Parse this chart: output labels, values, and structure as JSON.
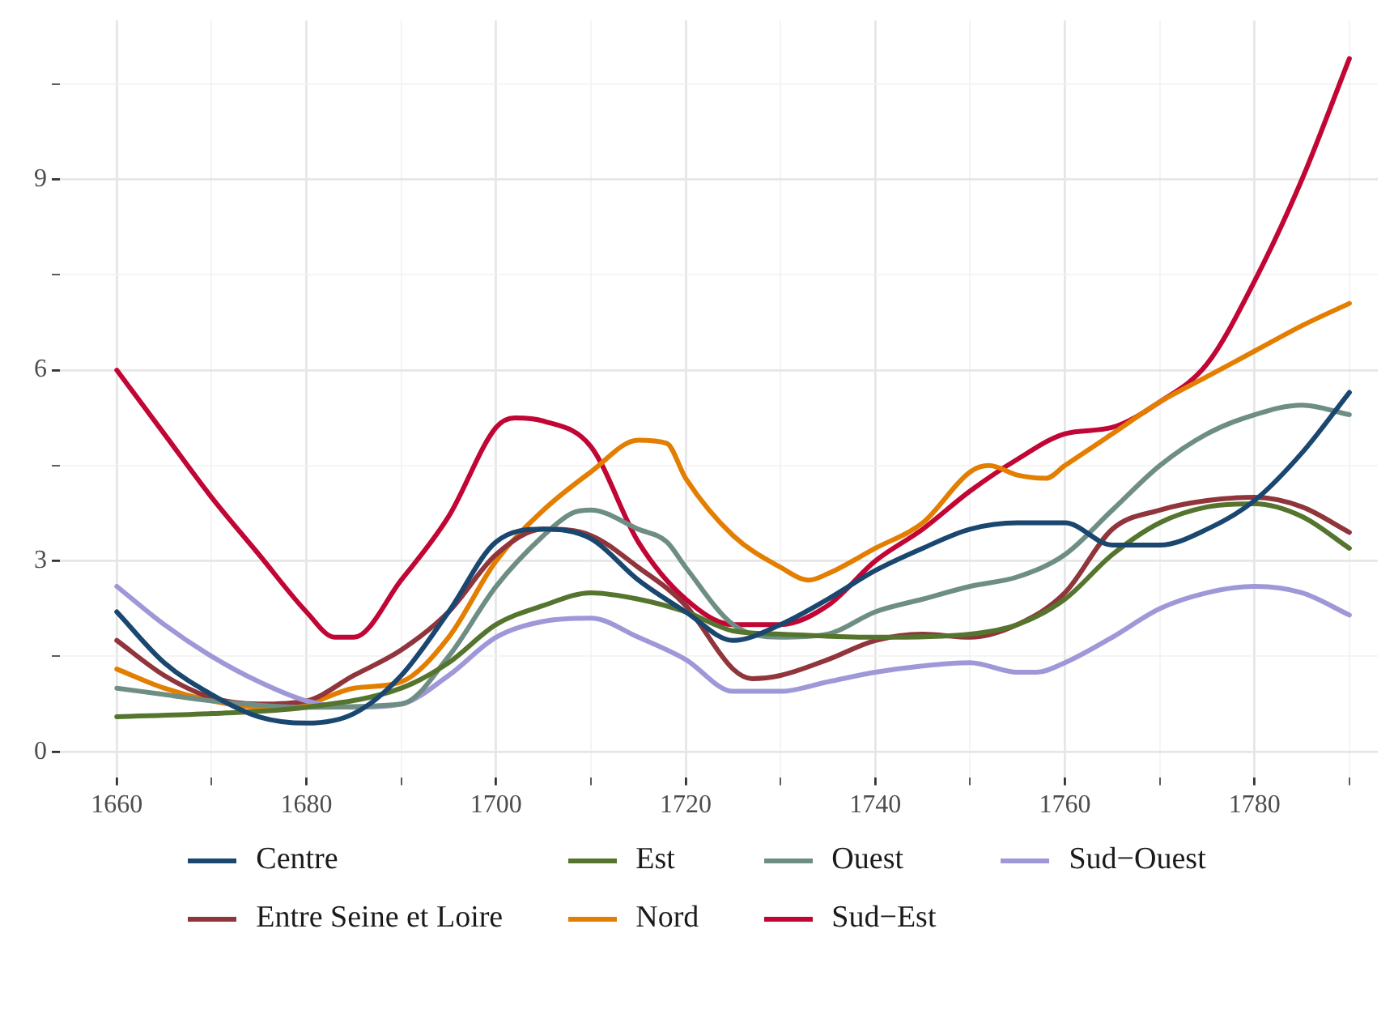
{
  "chart_data": {
    "type": "line",
    "xlim": [
      1654,
      1793
    ],
    "ylim": [
      -0.4,
      11.5
    ],
    "xticks": [
      1660,
      {
        "value": 1670,
        "label": null
      },
      1680,
      {
        "value": 1690,
        "label": null
      },
      1700,
      {
        "value": 1710,
        "label": null
      },
      1720,
      {
        "value": 1730,
        "label": null
      },
      1740,
      {
        "value": 1750,
        "label": null
      },
      1760,
      {
        "value": 1770,
        "label": null
      },
      1780,
      {
        "value": 1790,
        "label": null
      }
    ],
    "yticks": [
      0,
      {
        "value": 1.5,
        "label": null
      },
      3,
      {
        "value": 4.5,
        "label": null
      },
      6,
      {
        "value": 7.5,
        "label": null
      },
      9,
      {
        "value": 10.5,
        "label": null
      }
    ],
    "grid": true,
    "legend": "bottom",
    "marker": "none",
    "line_style": "solid",
    "series": [
      {
        "name": "Centre",
        "color": "#1a476f",
        "x": [
          1660,
          1665,
          1670,
          1675,
          1680,
          1685,
          1690,
          1695,
          1700,
          1705,
          1710,
          1715,
          1720,
          1725,
          1730,
          1735,
          1740,
          1745,
          1750,
          1755,
          1760,
          1765,
          1770,
          1775,
          1780,
          1785,
          1790
        ],
        "values": [
          2.2,
          1.4,
          0.9,
          0.55,
          0.45,
          0.6,
          1.2,
          2.2,
          3.3,
          3.5,
          3.35,
          2.7,
          2.2,
          1.75,
          2.0,
          2.4,
          2.85,
          3.2,
          3.5,
          3.6,
          3.6,
          3.25,
          3.25,
          3.5,
          3.95,
          4.7,
          5.65
        ]
      },
      {
        "name": "Est",
        "color": "#55752f",
        "x": [
          1660,
          1670,
          1680,
          1690,
          1695,
          1700,
          1705,
          1710,
          1715,
          1720,
          1725,
          1730,
          1740,
          1750,
          1755,
          1760,
          1765,
          1770,
          1775,
          1780,
          1785,
          1790
        ],
        "values": [
          0.55,
          0.6,
          0.7,
          1.0,
          1.4,
          2.0,
          2.3,
          2.5,
          2.4,
          2.2,
          1.9,
          1.85,
          1.8,
          1.85,
          2.0,
          2.4,
          3.1,
          3.6,
          3.85,
          3.9,
          3.7,
          3.2
        ]
      },
      {
        "name": "Ouest",
        "color": "#6e8e84",
        "x": [
          1660,
          1665,
          1670,
          1680,
          1690,
          1695,
          1700,
          1705,
          1708,
          1710,
          1715,
          1718,
          1720,
          1725,
          1730,
          1735,
          1740,
          1745,
          1750,
          1755,
          1760,
          1765,
          1770,
          1775,
          1780,
          1785,
          1790
        ],
        "values": [
          1.0,
          0.9,
          0.8,
          0.7,
          0.75,
          1.5,
          2.6,
          3.4,
          3.75,
          3.8,
          3.5,
          3.3,
          2.9,
          2.0,
          1.8,
          1.85,
          2.2,
          2.4,
          2.6,
          2.75,
          3.1,
          3.8,
          4.5,
          5.0,
          5.3,
          5.45,
          5.3
        ]
      },
      {
        "name": "Sud−Ouest",
        "color": "#9f98d8",
        "x": [
          1660,
          1665,
          1670,
          1675,
          1680,
          1685,
          1690,
          1695,
          1700,
          1705,
          1710,
          1715,
          1720,
          1725,
          1730,
          1735,
          1740,
          1745,
          1750,
          1755,
          1757,
          1760,
          1765,
          1770,
          1775,
          1780,
          1785,
          1790
        ],
        "values": [
          2.6,
          2.0,
          1.5,
          1.1,
          0.8,
          0.7,
          0.75,
          1.2,
          1.8,
          2.05,
          2.1,
          1.8,
          1.45,
          0.95,
          0.95,
          1.1,
          1.25,
          1.35,
          1.4,
          1.25,
          1.25,
          1.4,
          1.8,
          2.25,
          2.5,
          2.6,
          2.5,
          2.15
        ]
      },
      {
        "name": "Entre Seine et Loire",
        "color": "#90353b",
        "x": [
          1660,
          1665,
          1670,
          1675,
          1680,
          1685,
          1690,
          1695,
          1700,
          1705,
          1710,
          1715,
          1720,
          1725,
          1727,
          1730,
          1735,
          1740,
          1745,
          1750,
          1755,
          1760,
          1765,
          1770,
          1775,
          1780,
          1785,
          1790
        ],
        "values": [
          1.75,
          1.2,
          0.85,
          0.75,
          0.8,
          1.2,
          1.6,
          2.2,
          3.1,
          3.5,
          3.4,
          2.9,
          2.3,
          1.3,
          1.15,
          1.2,
          1.45,
          1.75,
          1.85,
          1.8,
          2.0,
          2.5,
          3.5,
          3.8,
          3.95,
          4.0,
          3.85,
          3.45
        ]
      },
      {
        "name": "Nord",
        "color": "#e37e00",
        "x": [
          1660,
          1665,
          1670,
          1675,
          1680,
          1685,
          1690,
          1695,
          1700,
          1705,
          1710,
          1715,
          1718,
          1720,
          1725,
          1730,
          1733,
          1735,
          1740,
          1745,
          1750,
          1752,
          1755,
          1758,
          1760,
          1765,
          1770,
          1775,
          1780,
          1785,
          1790
        ],
        "values": [
          1.3,
          1.0,
          0.8,
          0.7,
          0.75,
          1.0,
          1.1,
          1.8,
          3.0,
          3.8,
          4.4,
          4.9,
          4.85,
          4.3,
          3.4,
          2.9,
          2.7,
          2.8,
          3.2,
          3.6,
          4.4,
          4.5,
          4.35,
          4.3,
          4.5,
          5.0,
          5.5,
          5.9,
          6.3,
          6.7,
          7.05
        ]
      },
      {
        "name": "Sud−Est",
        "color": "#c10534",
        "x": [
          1660,
          1665,
          1670,
          1675,
          1680,
          1683,
          1685,
          1690,
          1695,
          1700,
          1702,
          1705,
          1710,
          1715,
          1720,
          1725,
          1730,
          1735,
          1740,
          1745,
          1750,
          1755,
          1760,
          1765,
          1770,
          1775,
          1780,
          1785,
          1790
        ],
        "values": [
          6.0,
          5.0,
          4.0,
          3.1,
          2.2,
          1.8,
          1.8,
          2.7,
          3.7,
          5.1,
          5.25,
          5.2,
          4.8,
          3.3,
          2.4,
          2.0,
          2.0,
          2.3,
          3.0,
          3.5,
          4.1,
          4.6,
          5.0,
          5.1,
          5.5,
          6.1,
          7.4,
          9.0,
          10.9
        ]
      }
    ]
  }
}
